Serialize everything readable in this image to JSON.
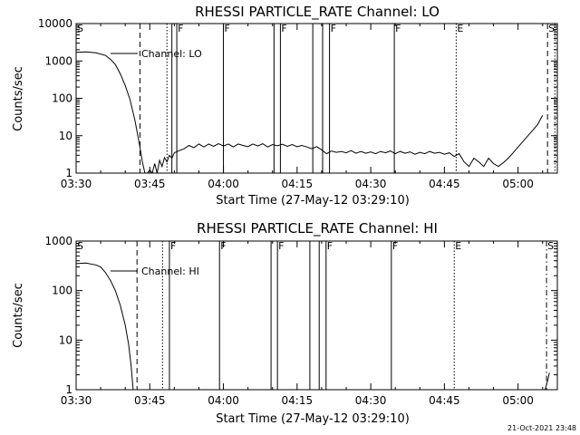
{
  "chart_data": [
    {
      "type": "line",
      "title": "RHESSI PARTICLE_RATE Channel: LO",
      "xlabel": "Start Time (27-May-12 03:29:10)",
      "ylabel": "Counts/sec",
      "y_scale": "log",
      "ylim": [
        1,
        10000
      ],
      "xlim": [
        0,
        98
      ],
      "x_ticks": [
        {
          "x": 0,
          "label": "03:30"
        },
        {
          "x": 15,
          "label": "03:45"
        },
        {
          "x": 30,
          "label": "04:00"
        },
        {
          "x": 45,
          "label": "04:15"
        },
        {
          "x": 60,
          "label": "04:30"
        },
        {
          "x": 75,
          "label": "04:45"
        },
        {
          "x": 90,
          "label": "05:00"
        }
      ],
      "y_ticks": [
        {
          "y": 1,
          "label": "1"
        },
        {
          "y": 10,
          "label": "10"
        },
        {
          "y": 100,
          "label": "100"
        },
        {
          "y": 1000,
          "label": "1000"
        },
        {
          "y": 10000,
          "label": "10000"
        }
      ],
      "legend": {
        "text": "Channel: LO",
        "placement": "top-left"
      },
      "series": [
        {
          "values": [
            [
              0,
              1700
            ],
            [
              2,
              1750
            ],
            [
              4,
              1650
            ],
            [
              6,
              1400
            ],
            [
              7,
              1100
            ],
            [
              8,
              800
            ],
            [
              9,
              450
            ],
            [
              10,
              220
            ],
            [
              11,
              90
            ],
            [
              12,
              25
            ],
            [
              13,
              5
            ],
            [
              13.5,
              2
            ],
            [
              14,
              1
            ],
            [
              14.5,
              0.8
            ],
            [
              15,
              1.2
            ],
            [
              15.5,
              0.8
            ],
            [
              16,
              1.8
            ],
            [
              16.5,
              1
            ],
            [
              17,
              2.2
            ],
            [
              17.5,
              1.5
            ],
            [
              18,
              2.6
            ],
            [
              18.5,
              2
            ],
            [
              19,
              3
            ],
            [
              19.5,
              2.5
            ],
            [
              20,
              3.5
            ],
            [
              21,
              4
            ],
            [
              22,
              4.5
            ],
            [
              23,
              5.5
            ],
            [
              24,
              4.8
            ],
            [
              25,
              6
            ],
            [
              26,
              5
            ],
            [
              27,
              6
            ],
            [
              28,
              5.2
            ],
            [
              29,
              6.1
            ],
            [
              30,
              5.3
            ],
            [
              31,
              6
            ],
            [
              32,
              5
            ],
            [
              33,
              6
            ],
            [
              34,
              5.5
            ],
            [
              35,
              5.1
            ],
            [
              36,
              6
            ],
            [
              37,
              5.3
            ],
            [
              38,
              6.1
            ],
            [
              39,
              5
            ],
            [
              40,
              5.8
            ],
            [
              41,
              5.4
            ],
            [
              42,
              5.9
            ],
            [
              43,
              5.2
            ],
            [
              44,
              5.8
            ],
            [
              45,
              5.1
            ],
            [
              46,
              5.5
            ],
            [
              47,
              5
            ],
            [
              48,
              4.5
            ],
            [
              49,
              5.1
            ],
            [
              50,
              4.2
            ],
            [
              51,
              3.3
            ],
            [
              52,
              3.9
            ],
            [
              53,
              3.6
            ],
            [
              54,
              3.8
            ],
            [
              55,
              3.5
            ],
            [
              56,
              4
            ],
            [
              57,
              3.4
            ],
            [
              58,
              3.8
            ],
            [
              59,
              3.4
            ],
            [
              60,
              3.7
            ],
            [
              61,
              3.3
            ],
            [
              62,
              3.8
            ],
            [
              63,
              3.5
            ],
            [
              64,
              3.9
            ],
            [
              65,
              3.3
            ],
            [
              66,
              3.8
            ],
            [
              67,
              3.4
            ],
            [
              68,
              3.7
            ],
            [
              69,
              3.2
            ],
            [
              70,
              3.6
            ],
            [
              71,
              3.3
            ],
            [
              72,
              3.8
            ],
            [
              73,
              3.4
            ],
            [
              74,
              3.6
            ],
            [
              75,
              3.2
            ],
            [
              76,
              3.5
            ],
            [
              77,
              2.8
            ],
            [
              78,
              3.3
            ],
            [
              79,
              2
            ],
            [
              80,
              1.5
            ],
            [
              81,
              2.5
            ],
            [
              82,
              2
            ],
            [
              83,
              1.5
            ],
            [
              84,
              2.5
            ],
            [
              85,
              1.8
            ],
            [
              86,
              1.5
            ],
            [
              87,
              1.9
            ],
            [
              88,
              2.5
            ],
            [
              89,
              3.5
            ],
            [
              90,
              5
            ],
            [
              91,
              7
            ],
            [
              92,
              10
            ],
            [
              93,
              14
            ],
            [
              94,
              20
            ],
            [
              95,
              35
            ]
          ]
        }
      ],
      "events": [
        {
          "x": 0,
          "label": "S",
          "style": "solid"
        },
        {
          "x": 13,
          "label": "",
          "style": "dashed"
        },
        {
          "x": 18.5,
          "label": "",
          "style": "dotted"
        },
        {
          "x": 19.5,
          "label": "",
          "style": "solid"
        },
        {
          "x": 20.5,
          "label": "F",
          "style": "solid"
        },
        {
          "x": 30,
          "label": "F",
          "style": "solid"
        },
        {
          "x": 40.3,
          "label": "",
          "style": "solid"
        },
        {
          "x": 41.6,
          "label": "F",
          "style": "solid"
        },
        {
          "x": 48.2,
          "label": "",
          "style": "solid"
        },
        {
          "x": 50.2,
          "label": "",
          "style": "solid"
        },
        {
          "x": 51.6,
          "label": "F",
          "style": "solid"
        },
        {
          "x": 64.8,
          "label": "F",
          "style": "solid"
        },
        {
          "x": 77.4,
          "label": "E",
          "style": "dotted"
        },
        {
          "x": 96,
          "label": "S",
          "style": "dashed"
        },
        {
          "x": 97.5,
          "label": "",
          "style": "dotted"
        }
      ]
    },
    {
      "type": "line",
      "title": "RHESSI PARTICLE_RATE Channel: HI",
      "xlabel": "Start Time (27-May-12 03:29:10)",
      "ylabel": "Counts/sec",
      "y_scale": "log",
      "ylim": [
        1,
        1000
      ],
      "xlim": [
        0,
        98
      ],
      "x_ticks": [
        {
          "x": 0,
          "label": "03:30"
        },
        {
          "x": 15,
          "label": "03:45"
        },
        {
          "x": 30,
          "label": "04:00"
        },
        {
          "x": 45,
          "label": "04:15"
        },
        {
          "x": 60,
          "label": "04:30"
        },
        {
          "x": 75,
          "label": "04:45"
        },
        {
          "x": 90,
          "label": "05:00"
        }
      ],
      "y_ticks": [
        {
          "y": 1,
          "label": "1"
        },
        {
          "y": 10,
          "label": "10"
        },
        {
          "y": 100,
          "label": "100"
        },
        {
          "y": 1000,
          "label": "1000"
        }
      ],
      "legend": {
        "text": "Channel: HI",
        "placement": "top-left"
      },
      "series": [
        {
          "values": [
            [
              0,
              350
            ],
            [
              2,
              360
            ],
            [
              4,
              330
            ],
            [
              5,
              300
            ],
            [
              6,
              230
            ],
            [
              7,
              160
            ],
            [
              8,
              100
            ],
            [
              9,
              50
            ],
            [
              10,
              20
            ],
            [
              10.7,
              8
            ],
            [
              11.2,
              3
            ],
            [
              11.6,
              1
            ]
          ]
        },
        {
          "values": [
            [
              95.5,
              1
            ],
            [
              96,
              1.5
            ],
            [
              96.4,
              2.2
            ]
          ]
        }
      ],
      "events": [
        {
          "x": 0,
          "label": "S",
          "style": "solid"
        },
        {
          "x": 12.4,
          "label": "",
          "style": "dashed"
        },
        {
          "x": 17.6,
          "label": "",
          "style": "dotted"
        },
        {
          "x": 19,
          "label": "F",
          "style": "solid"
        },
        {
          "x": 29.2,
          "label": "F",
          "style": "solid"
        },
        {
          "x": 39.7,
          "label": "",
          "style": "solid"
        },
        {
          "x": 41,
          "label": "F",
          "style": "solid"
        },
        {
          "x": 47.6,
          "label": "",
          "style": "solid"
        },
        {
          "x": 49.5,
          "label": "",
          "style": "solid"
        },
        {
          "x": 50.9,
          "label": "F",
          "style": "solid"
        },
        {
          "x": 64.2,
          "label": "F",
          "style": "solid"
        },
        {
          "x": 77,
          "label": "E",
          "style": "dotted"
        },
        {
          "x": 95.8,
          "label": "S",
          "style": "dashdot"
        }
      ]
    }
  ],
  "footer": {
    "timestamp": "21-Oct-2021 23:48"
  },
  "colors": {
    "line": "#000000",
    "background": "#ffffff"
  }
}
